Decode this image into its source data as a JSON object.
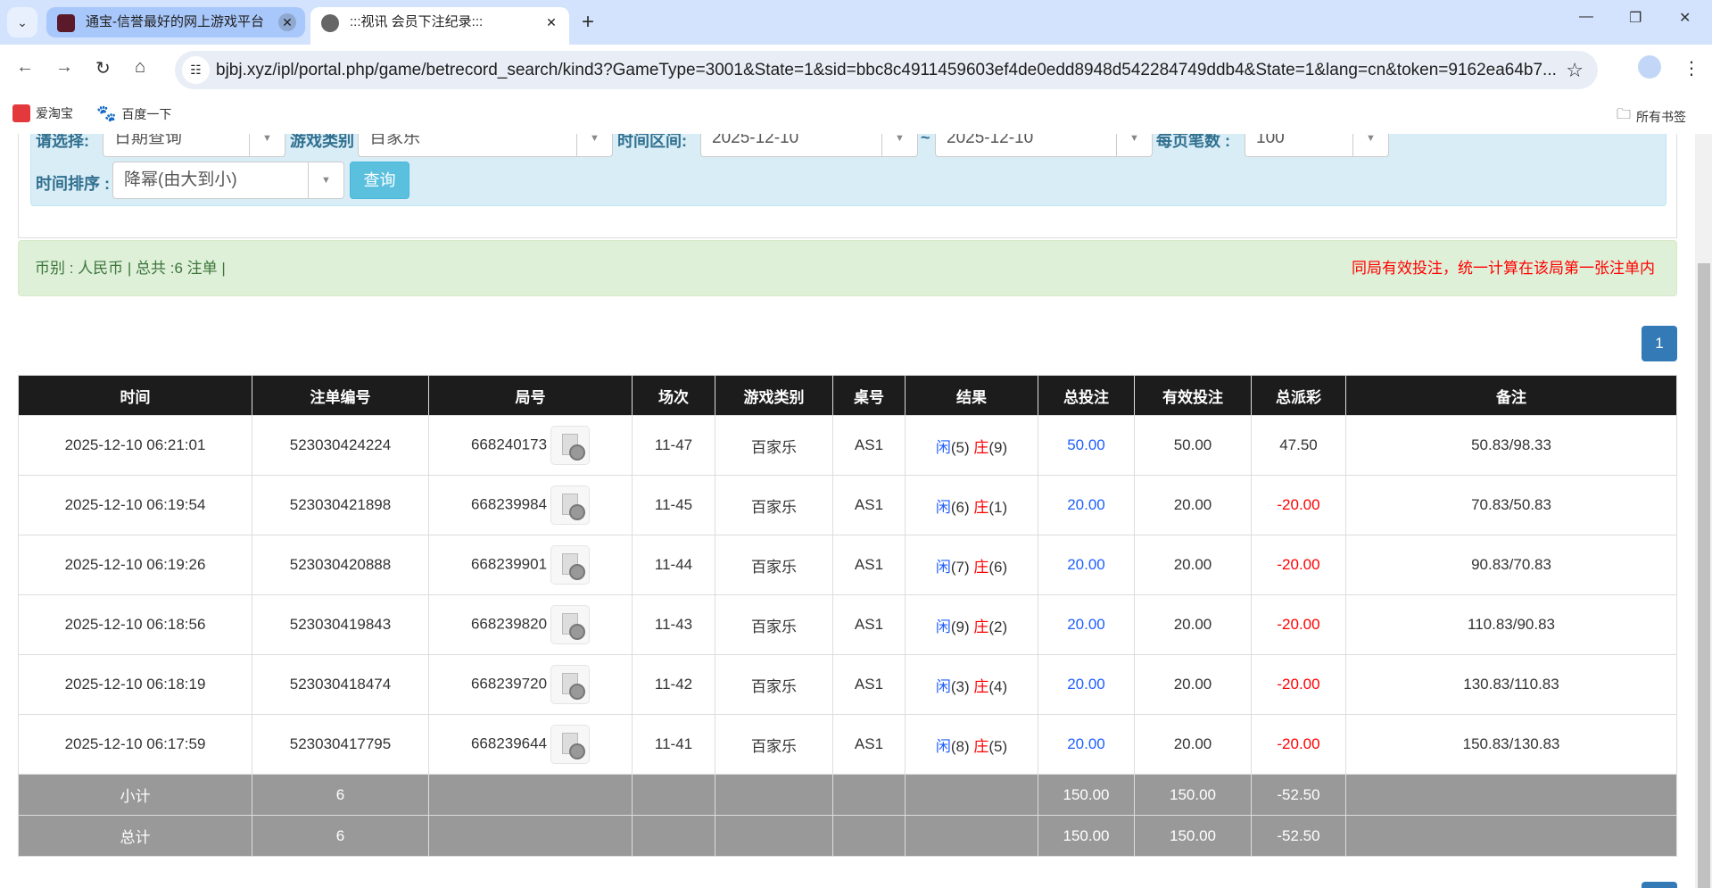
{
  "browser": {
    "tabs": [
      {
        "title": "通宝-信誉最好的网上游戏平台",
        "active": false
      },
      {
        "title": ":::视讯 会员下注纪录:::",
        "active": true
      }
    ],
    "url": "bjbj.xyz/ipl/portal.php/game/betrecord_search/kind3?GameType=3001&State=1&sid=bbc8c4911459603ef4de0edd8948d542284749ddb4&State=1&lang=cn&token=9162ea64b7...",
    "bookmarks": [
      {
        "label": "爱淘宝",
        "icon": "taobao-icon"
      },
      {
        "label": "百度一下",
        "icon": "baidu-paw-icon"
      }
    ],
    "all_bookmarks": "所有书签"
  },
  "filter": {
    "select_label": "请选择:",
    "select_value": "日期查询",
    "game_type_label": "游戏类别",
    "game_type_value": "百家乐",
    "time_range_label": "时间区间:",
    "date_from": "2025-12-10",
    "tilde": "~",
    "date_to": "2025-12-10",
    "per_page_label": "每页笔数 :",
    "per_page_value": "100",
    "sort_label": "时间排序 :",
    "sort_value": "降幂(由大到小)",
    "query_button": "查询"
  },
  "summary": {
    "left": "币别 : 人民币 | 总共 :6 注单 |",
    "right": "同局有效投注，统一计算在该局第一张注单内"
  },
  "pagination": {
    "current": "1"
  },
  "table": {
    "headers": [
      "时间",
      "注单编号",
      "局号",
      "场次",
      "游戏类别",
      "桌号",
      "结果",
      "总投注",
      "有效投注",
      "总派彩",
      "备注"
    ],
    "rows": [
      {
        "time": "2025-12-10 06:21:01",
        "bet_id": "523030424224",
        "round": "668240173",
        "shoe": "11-47",
        "game": "百家乐",
        "table": "AS1",
        "player": "闲",
        "player_pts": "(5)",
        "banker": "庄",
        "banker_pts": "(9)",
        "total": "50.00",
        "valid": "50.00",
        "payout": "47.50",
        "payout_negative": false,
        "note": "50.83/98.33"
      },
      {
        "time": "2025-12-10 06:19:54",
        "bet_id": "523030421898",
        "round": "668239984",
        "shoe": "11-45",
        "game": "百家乐",
        "table": "AS1",
        "player": "闲",
        "player_pts": "(6)",
        "banker": "庄",
        "banker_pts": "(1)",
        "total": "20.00",
        "valid": "20.00",
        "payout": "-20.00",
        "payout_negative": true,
        "note": "70.83/50.83"
      },
      {
        "time": "2025-12-10 06:19:26",
        "bet_id": "523030420888",
        "round": "668239901",
        "shoe": "11-44",
        "game": "百家乐",
        "table": "AS1",
        "player": "闲",
        "player_pts": "(7)",
        "banker": "庄",
        "banker_pts": "(6)",
        "total": "20.00",
        "valid": "20.00",
        "payout": "-20.00",
        "payout_negative": true,
        "note": "90.83/70.83"
      },
      {
        "time": "2025-12-10 06:18:56",
        "bet_id": "523030419843",
        "round": "668239820",
        "shoe": "11-43",
        "game": "百家乐",
        "table": "AS1",
        "player": "闲",
        "player_pts": "(9)",
        "banker": "庄",
        "banker_pts": "(2)",
        "total": "20.00",
        "valid": "20.00",
        "payout": "-20.00",
        "payout_negative": true,
        "note": "110.83/90.83"
      },
      {
        "time": "2025-12-10 06:18:19",
        "bet_id": "523030418474",
        "round": "668239720",
        "shoe": "11-42",
        "game": "百家乐",
        "table": "AS1",
        "player": "闲",
        "player_pts": "(3)",
        "banker": "庄",
        "banker_pts": "(4)",
        "total": "20.00",
        "valid": "20.00",
        "payout": "-20.00",
        "payout_negative": true,
        "note": "130.83/110.83"
      },
      {
        "time": "2025-12-10 06:17:59",
        "bet_id": "523030417795",
        "round": "668239644",
        "shoe": "11-41",
        "game": "百家乐",
        "table": "AS1",
        "player": "闲",
        "player_pts": "(8)",
        "banker": "庄",
        "banker_pts": "(5)",
        "total": "20.00",
        "valid": "20.00",
        "payout": "-20.00",
        "payout_negative": true,
        "note": "150.83/130.83"
      }
    ],
    "subtotal": {
      "label": "小计",
      "count": "6",
      "total": "150.00",
      "valid": "150.00",
      "payout": "-52.50"
    },
    "grand_total": {
      "label": "总计",
      "count": "6",
      "total": "150.00",
      "valid": "150.00",
      "payout": "-52.50"
    }
  },
  "colors": {
    "header_bg": "#1c1c1c",
    "player": "#1f5fff",
    "banker": "#ff0000",
    "negative": "#ff0000",
    "filter_bg": "#d9edf7",
    "alert_bg": "#dff0d8",
    "page_active": "#337ab7",
    "query_button": "#5bc0de"
  }
}
